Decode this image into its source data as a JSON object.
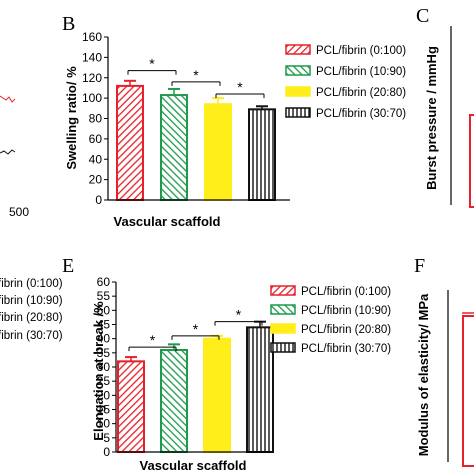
{
  "chart_data": [
    {
      "panel": "B",
      "type": "bar",
      "categories": [
        "PCL/fibrin (0:100)",
        "PCL/fibrin (10:90)",
        "PCL/fibrin (20:80)",
        "PCL/fibrin (30:70)"
      ],
      "values": [
        112,
        103,
        94,
        89
      ],
      "errors": [
        5,
        6,
        6,
        3
      ],
      "xlabel": "Vascular scaffold",
      "ylabel": "Swelling ratio/ %",
      "ylim": [
        0,
        160
      ],
      "yticks": [
        0,
        20,
        40,
        60,
        80,
        100,
        120,
        140,
        160
      ],
      "colors": [
        "#e8202a",
        "#1e9a4a",
        "#ffee1a",
        "#111111"
      ],
      "patterns": [
        "diag-down",
        "diag-down",
        "solid",
        "vertical"
      ],
      "significance": [
        {
          "from": 0,
          "to": 1,
          "label": "*",
          "y": 127
        },
        {
          "from": 1,
          "to": 2,
          "label": "*",
          "y": 116
        },
        {
          "from": 2,
          "to": 3,
          "label": "*",
          "y": 104
        }
      ],
      "legend": [
        "PCL/fibrin (0:100)",
        "PCL/fibrin (10:90)",
        "PCL/fibrin (20:80)",
        "PCL/fibrin (30:70)"
      ]
    },
    {
      "panel": "E",
      "type": "bar",
      "categories": [
        "PCL/fibrin (0:100)",
        "PCL/fibrin (10:90)",
        "PCL/fibrin (20:80)",
        "PCL/fibrin (30:70)"
      ],
      "values": [
        32,
        36,
        40,
        44
      ],
      "errors": [
        1.5,
        2,
        1,
        2
      ],
      "xlabel": "Vascular scaffold",
      "ylabel": "Elongation at break /%",
      "ylim": [
        0,
        60
      ],
      "yticks": [
        0,
        5,
        10,
        15,
        20,
        25,
        30,
        35,
        40,
        45,
        50,
        55,
        60
      ],
      "colors": [
        "#e8202a",
        "#1e9a4a",
        "#ffee1a",
        "#111111"
      ],
      "patterns": [
        "diag-down",
        "diag-down",
        "solid",
        "vertical"
      ],
      "significance": [
        {
          "from": 0,
          "to": 1,
          "label": "*",
          "y": 37
        },
        {
          "from": 1,
          "to": 2,
          "label": "*",
          "y": 41
        },
        {
          "from": 2,
          "to": 3,
          "label": "*",
          "y": 46
        }
      ],
      "legend": [
        "PCL/fibrin (0:100)",
        "PCL/fibrin (10:90)",
        "PCL/fibrin (20:80)",
        "PCL/fibrin (30:70)"
      ]
    }
  ],
  "partial": {
    "left_top_tick": "500",
    "left_legend": [
      "fibrin (0:100)",
      "fibrin (10:90)",
      "fibrin (20:80)",
      "fibrin (30:70)"
    ],
    "panel_c_letter": "C",
    "panel_c_ylabel": "Burst pressure / mmHg",
    "panel_f_letter": "F",
    "panel_f_ylabel": "Modulus of elasticity/ MPa"
  }
}
